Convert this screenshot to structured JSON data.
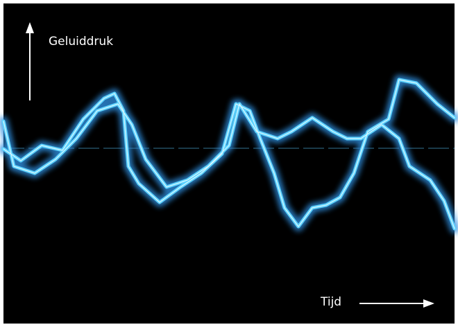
{
  "labels": {
    "y_axis": "Geluiddruk",
    "x_axis": "Tijd"
  }
}
